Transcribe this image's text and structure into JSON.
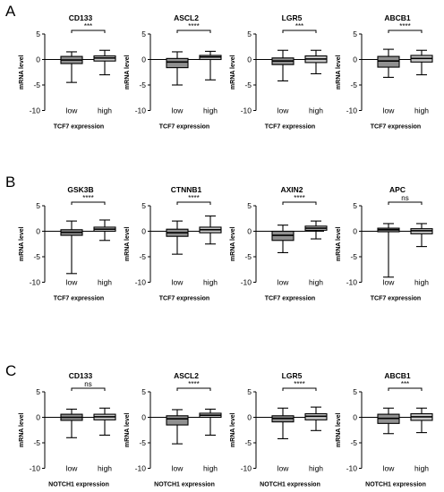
{
  "colors": {
    "low_box": "#909090",
    "high_box": "#c8c8c8",
    "ink": "#000000"
  },
  "chart_data": [
    {
      "panel": "A",
      "type": "box",
      "title": "CD133",
      "xlabel": "TCF7 expression",
      "ylabel": "mRNA level",
      "ylim": [
        -10,
        5
      ],
      "yticks": [
        5,
        0,
        -5,
        -10
      ],
      "categories": [
        "low",
        "high"
      ],
      "significance": "***",
      "boxes": [
        {
          "group": "low",
          "min": -4.5,
          "q1": -0.8,
          "median": -0.1,
          "q3": 0.6,
          "max": 1.5
        },
        {
          "group": "high",
          "min": -3.0,
          "q1": -0.3,
          "median": 0.3,
          "q3": 0.7,
          "max": 1.8
        }
      ]
    },
    {
      "panel": "A",
      "type": "box",
      "title": "ASCL2",
      "xlabel": "TCF7 expression",
      "ylabel": "mRNA level",
      "ylim": [
        -10,
        5
      ],
      "yticks": [
        5,
        0,
        -5,
        -10
      ],
      "categories": [
        "low",
        "high"
      ],
      "significance": "****",
      "boxes": [
        {
          "group": "low",
          "min": -5.0,
          "q1": -1.6,
          "median": -0.5,
          "q3": 0.2,
          "max": 1.5
        },
        {
          "group": "high",
          "min": -4.0,
          "q1": 0.0,
          "median": 0.5,
          "q3": 0.8,
          "max": 1.6
        }
      ]
    },
    {
      "panel": "A",
      "type": "box",
      "title": "LGR5",
      "xlabel": "TCF7 expression",
      "ylabel": "mRNA level",
      "ylim": [
        -10,
        5
      ],
      "yticks": [
        5,
        0,
        -5,
        -10
      ],
      "categories": [
        "low",
        "high"
      ],
      "significance": "***",
      "boxes": [
        {
          "group": "low",
          "min": -4.2,
          "q1": -1.0,
          "median": -0.3,
          "q3": 0.3,
          "max": 1.8
        },
        {
          "group": "high",
          "min": -2.8,
          "q1": -0.6,
          "median": 0.1,
          "q3": 0.7,
          "max": 1.8
        }
      ]
    },
    {
      "panel": "A",
      "type": "box",
      "title": "ABCB1",
      "xlabel": "TCF7 expression",
      "ylabel": "mRNA level",
      "ylim": [
        -10,
        5
      ],
      "yticks": [
        5,
        0,
        -5,
        -10
      ],
      "categories": [
        "low",
        "high"
      ],
      "significance": "****",
      "boxes": [
        {
          "group": "low",
          "min": -3.5,
          "q1": -1.5,
          "median": -0.3,
          "q3": 0.6,
          "max": 2.0
        },
        {
          "group": "high",
          "min": -3.0,
          "q1": -0.5,
          "median": 0.2,
          "q3": 0.8,
          "max": 1.8
        }
      ]
    },
    {
      "panel": "B",
      "type": "box",
      "title": "GSK3B",
      "xlabel": "TCF7 expression",
      "ylabel": "mRNA level",
      "ylim": [
        -10,
        5
      ],
      "yticks": [
        5,
        0,
        -5,
        -10
      ],
      "categories": [
        "low",
        "high"
      ],
      "significance": "****",
      "boxes": [
        {
          "group": "low",
          "min": -8.3,
          "q1": -0.8,
          "median": -0.2,
          "q3": 0.3,
          "max": 2.0
        },
        {
          "group": "high",
          "min": -1.8,
          "q1": 0.0,
          "median": 0.4,
          "q3": 0.8,
          "max": 2.2
        }
      ]
    },
    {
      "panel": "B",
      "type": "box",
      "title": "CTNNB1",
      "xlabel": "TCF7 expression",
      "ylabel": "mRNA level",
      "ylim": [
        -10,
        5
      ],
      "yticks": [
        5,
        0,
        -5,
        -10
      ],
      "categories": [
        "low",
        "high"
      ],
      "significance": "****",
      "boxes": [
        {
          "group": "low",
          "min": -4.5,
          "q1": -1.0,
          "median": -0.3,
          "q3": 0.4,
          "max": 2.0
        },
        {
          "group": "high",
          "min": -2.5,
          "q1": -0.3,
          "median": 0.3,
          "q3": 0.8,
          "max": 3.0
        }
      ]
    },
    {
      "panel": "B",
      "type": "box",
      "title": "AXIN2",
      "xlabel": "TCF7 expression",
      "ylabel": "mRNA level",
      "ylim": [
        -10,
        5
      ],
      "yticks": [
        5,
        0,
        -5,
        -10
      ],
      "categories": [
        "low",
        "high"
      ],
      "significance": "****",
      "boxes": [
        {
          "group": "low",
          "min": -4.2,
          "q1": -1.8,
          "median": -0.8,
          "q3": 0.0,
          "max": 1.2
        },
        {
          "group": "high",
          "min": -1.5,
          "q1": 0.2,
          "median": 0.6,
          "q3": 1.0,
          "max": 2.0
        }
      ]
    },
    {
      "panel": "B",
      "type": "box",
      "title": "APC",
      "xlabel": "TCF7 expression",
      "ylabel": "mRNA level",
      "ylim": [
        -10,
        5
      ],
      "yticks": [
        5,
        0,
        -5,
        -10
      ],
      "categories": [
        "low",
        "high"
      ],
      "significance": "ns",
      "boxes": [
        {
          "group": "low",
          "min": -9.0,
          "q1": -0.1,
          "median": 0.3,
          "q3": 0.6,
          "max": 1.5
        },
        {
          "group": "high",
          "min": -3.0,
          "q1": -0.5,
          "median": 0.1,
          "q3": 0.5,
          "max": 1.5
        }
      ]
    },
    {
      "panel": "C",
      "type": "box",
      "title": "CD133",
      "xlabel": "NOTCH1 expression",
      "ylabel": "mRNA level",
      "ylim": [
        -10,
        5
      ],
      "yticks": [
        5,
        0,
        -5,
        -10
      ],
      "categories": [
        "low",
        "high"
      ],
      "significance": "ns",
      "boxes": [
        {
          "group": "low",
          "min": -4.0,
          "q1": -0.6,
          "median": 0.0,
          "q3": 0.6,
          "max": 1.6
        },
        {
          "group": "high",
          "min": -3.5,
          "q1": -0.5,
          "median": 0.1,
          "q3": 0.6,
          "max": 1.8
        }
      ]
    },
    {
      "panel": "C",
      "type": "box",
      "title": "ASCL2",
      "xlabel": "NOTCH1 expression",
      "ylabel": "mRNA level",
      "ylim": [
        -10,
        5
      ],
      "yticks": [
        5,
        0,
        -5,
        -10
      ],
      "categories": [
        "low",
        "high"
      ],
      "significance": "****",
      "boxes": [
        {
          "group": "low",
          "min": -5.2,
          "q1": -1.5,
          "median": -0.3,
          "q3": 0.3,
          "max": 1.5
        },
        {
          "group": "high",
          "min": -3.5,
          "q1": 0.0,
          "median": 0.4,
          "q3": 0.8,
          "max": 1.6
        }
      ]
    },
    {
      "panel": "C",
      "type": "box",
      "title": "LGR5",
      "xlabel": "NOTCH1 expression",
      "ylabel": "mRNA level",
      "ylim": [
        -10,
        5
      ],
      "yticks": [
        5,
        0,
        -5,
        -10
      ],
      "categories": [
        "low",
        "high"
      ],
      "significance": "****",
      "boxes": [
        {
          "group": "low",
          "min": -4.2,
          "q1": -0.9,
          "median": -0.2,
          "q3": 0.3,
          "max": 1.8
        },
        {
          "group": "high",
          "min": -2.6,
          "q1": -0.5,
          "median": 0.2,
          "q3": 0.7,
          "max": 2.0
        }
      ]
    },
    {
      "panel": "C",
      "type": "box",
      "title": "ABCB1",
      "xlabel": "NOTCH1 expression",
      "ylabel": "mRNA level",
      "ylim": [
        -10,
        5
      ],
      "yticks": [
        5,
        0,
        -5,
        -10
      ],
      "categories": [
        "low",
        "high"
      ],
      "significance": "***",
      "boxes": [
        {
          "group": "low",
          "min": -3.2,
          "q1": -1.2,
          "median": -0.2,
          "q3": 0.6,
          "max": 1.8
        },
        {
          "group": "high",
          "min": -3.0,
          "q1": -0.6,
          "median": 0.1,
          "q3": 0.7,
          "max": 1.8
        }
      ]
    }
  ],
  "panel_labels": {
    "a": "A",
    "b": "B",
    "c": "C"
  }
}
